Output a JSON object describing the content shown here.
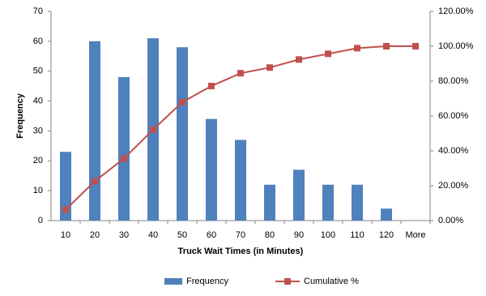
{
  "chart_data": {
    "type": "bar",
    "categories": [
      "10",
      "20",
      "30",
      "40",
      "50",
      "60",
      "70",
      "80",
      "90",
      "100",
      "110",
      "120",
      "More"
    ],
    "x_label": "Truck Wait Times (in Minutes)",
    "y_label": "Frequency",
    "series": [
      {
        "name": "Frequency",
        "type": "bar",
        "color": "#4f81bd",
        "values": [
          23,
          60,
          48,
          61,
          58,
          34,
          27,
          12,
          17,
          12,
          12,
          4,
          0
        ]
      },
      {
        "name": "Cumulative %",
        "type": "line",
        "axis": "y2",
        "color": "#c0504d",
        "values": [
          6.25,
          22.55,
          35.6,
          52.17,
          67.93,
          77.17,
          84.51,
          87.77,
          92.39,
          95.65,
          98.91,
          100,
          100
        ]
      }
    ],
    "ylim": [
      0,
      70
    ],
    "yticks": [
      0,
      10,
      20,
      30,
      40,
      50,
      60,
      70
    ],
    "y2lim": [
      0,
      120
    ],
    "y2ticks": [
      {
        "value": 0,
        "label": "0.00%"
      },
      {
        "value": 20,
        "label": "20.00%"
      },
      {
        "value": 40,
        "label": "40.00%"
      },
      {
        "value": 60,
        "label": "60.00%"
      },
      {
        "value": 80,
        "label": "80.00%"
      },
      {
        "value": 100,
        "label": "100.00%"
      },
      {
        "value": 120,
        "label": "120.00%"
      }
    ],
    "grid": false,
    "legend": "bottom"
  }
}
